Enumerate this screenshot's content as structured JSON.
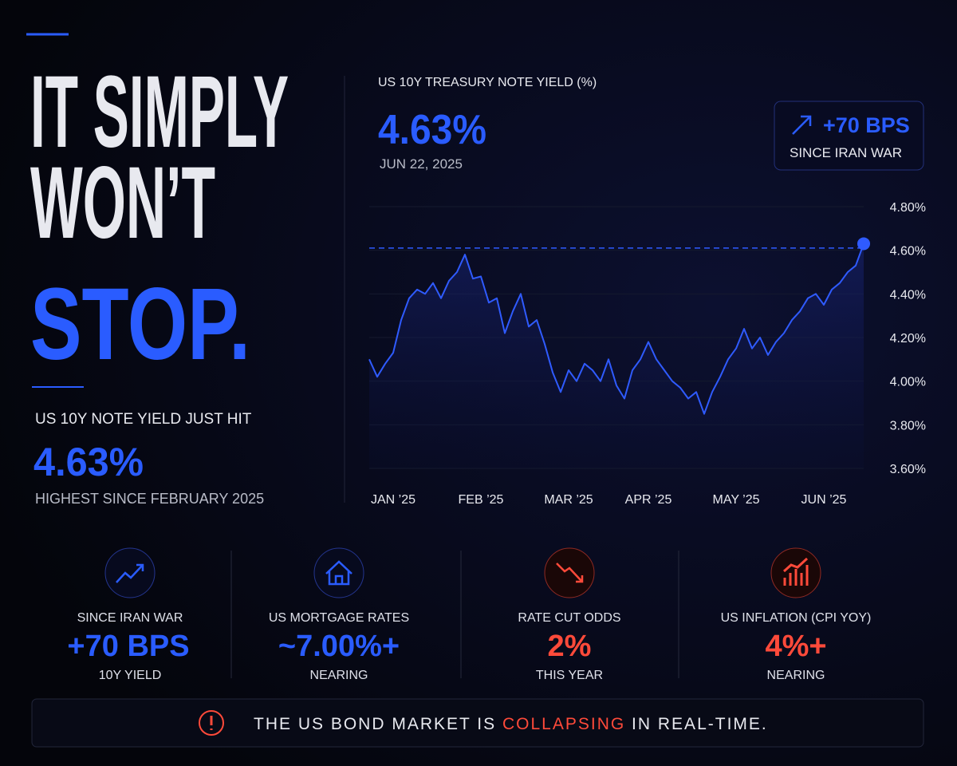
{
  "headline": {
    "line1": "IT SIMPLY",
    "line2": "WON’T",
    "line3": "STOP."
  },
  "summary": {
    "label": "US 10Y NOTE YIELD JUST HIT",
    "value": "4.63%",
    "note": "HIGHEST SINCE FEBRUARY 2025"
  },
  "chart_data": {
    "type": "line",
    "title": "US 10Y TREASURY NOTE YIELD (%)",
    "current_value": "4.63%",
    "current_date": "JUN 22, 2025",
    "badge": {
      "value": "+70 BPS",
      "label": "SINCE IRAN WAR"
    },
    "color": "#2f5bff",
    "categories": [
      null,
      null,
      null,
      "JAN ’25",
      null,
      null,
      null,
      null,
      null,
      null,
      null,
      null,
      null,
      null,
      "FEB ’25",
      null,
      null,
      null,
      null,
      null,
      null,
      null,
      null,
      null,
      null,
      "MAR ’25",
      null,
      null,
      null,
      null,
      null,
      null,
      null,
      null,
      null,
      "APR ’25",
      null,
      null,
      null,
      null,
      null,
      null,
      null,
      null,
      null,
      null,
      "MAY ’25",
      null,
      null,
      null,
      null,
      null,
      null,
      null,
      null,
      null,
      null,
      "JUN ’25",
      null,
      null,
      null,
      null,
      null
    ],
    "values": [
      4.1,
      4.02,
      4.08,
      4.13,
      4.28,
      4.38,
      4.42,
      4.4,
      4.45,
      4.38,
      4.46,
      4.5,
      4.58,
      4.47,
      4.48,
      4.36,
      4.38,
      4.22,
      4.32,
      4.4,
      4.25,
      4.28,
      4.17,
      4.04,
      3.95,
      4.05,
      4.0,
      4.08,
      4.05,
      4.0,
      4.1,
      3.98,
      3.92,
      4.05,
      4.1,
      4.18,
      4.1,
      4.05,
      4.0,
      3.97,
      3.92,
      3.95,
      3.85,
      3.95,
      4.02,
      4.1,
      4.15,
      4.24,
      4.15,
      4.2,
      4.12,
      4.18,
      4.22,
      4.28,
      4.32,
      4.38,
      4.4,
      4.35,
      4.42,
      4.45,
      4.5,
      4.53,
      4.63
    ],
    "reference_line": 4.61,
    "ylim": [
      3.6,
      4.8
    ],
    "yticks": [
      {
        "value": 3.6,
        "label": "3.60%"
      },
      {
        "value": 3.8,
        "label": "3.80%"
      },
      {
        "value": 4.0,
        "label": "4.00%"
      },
      {
        "value": 4.2,
        "label": "4.20%"
      },
      {
        "value": 4.4,
        "label": "4.40%"
      },
      {
        "value": 4.6,
        "label": "4.60%"
      },
      {
        "value": 4.8,
        "label": "4.80%"
      }
    ],
    "grid": true
  },
  "stats": [
    {
      "label": "SINCE IRAN WAR",
      "value": "+70 BPS",
      "sub": "10Y YIELD"
    },
    {
      "label": "US MORTGAGE RATES",
      "value": "~7.00%+",
      "sub": "NEARING"
    },
    {
      "label": "RATE CUT ODDS",
      "value": "2%",
      "sub": "THIS YEAR"
    },
    {
      "label": "US INFLATION (CPI YOY)",
      "value": "4%+",
      "sub": "NEARING"
    }
  ],
  "footer": {
    "before": "THE US BOND MARKET IS ",
    "highlight": "COLLAPSING",
    "after": " IN REAL-TIME."
  }
}
